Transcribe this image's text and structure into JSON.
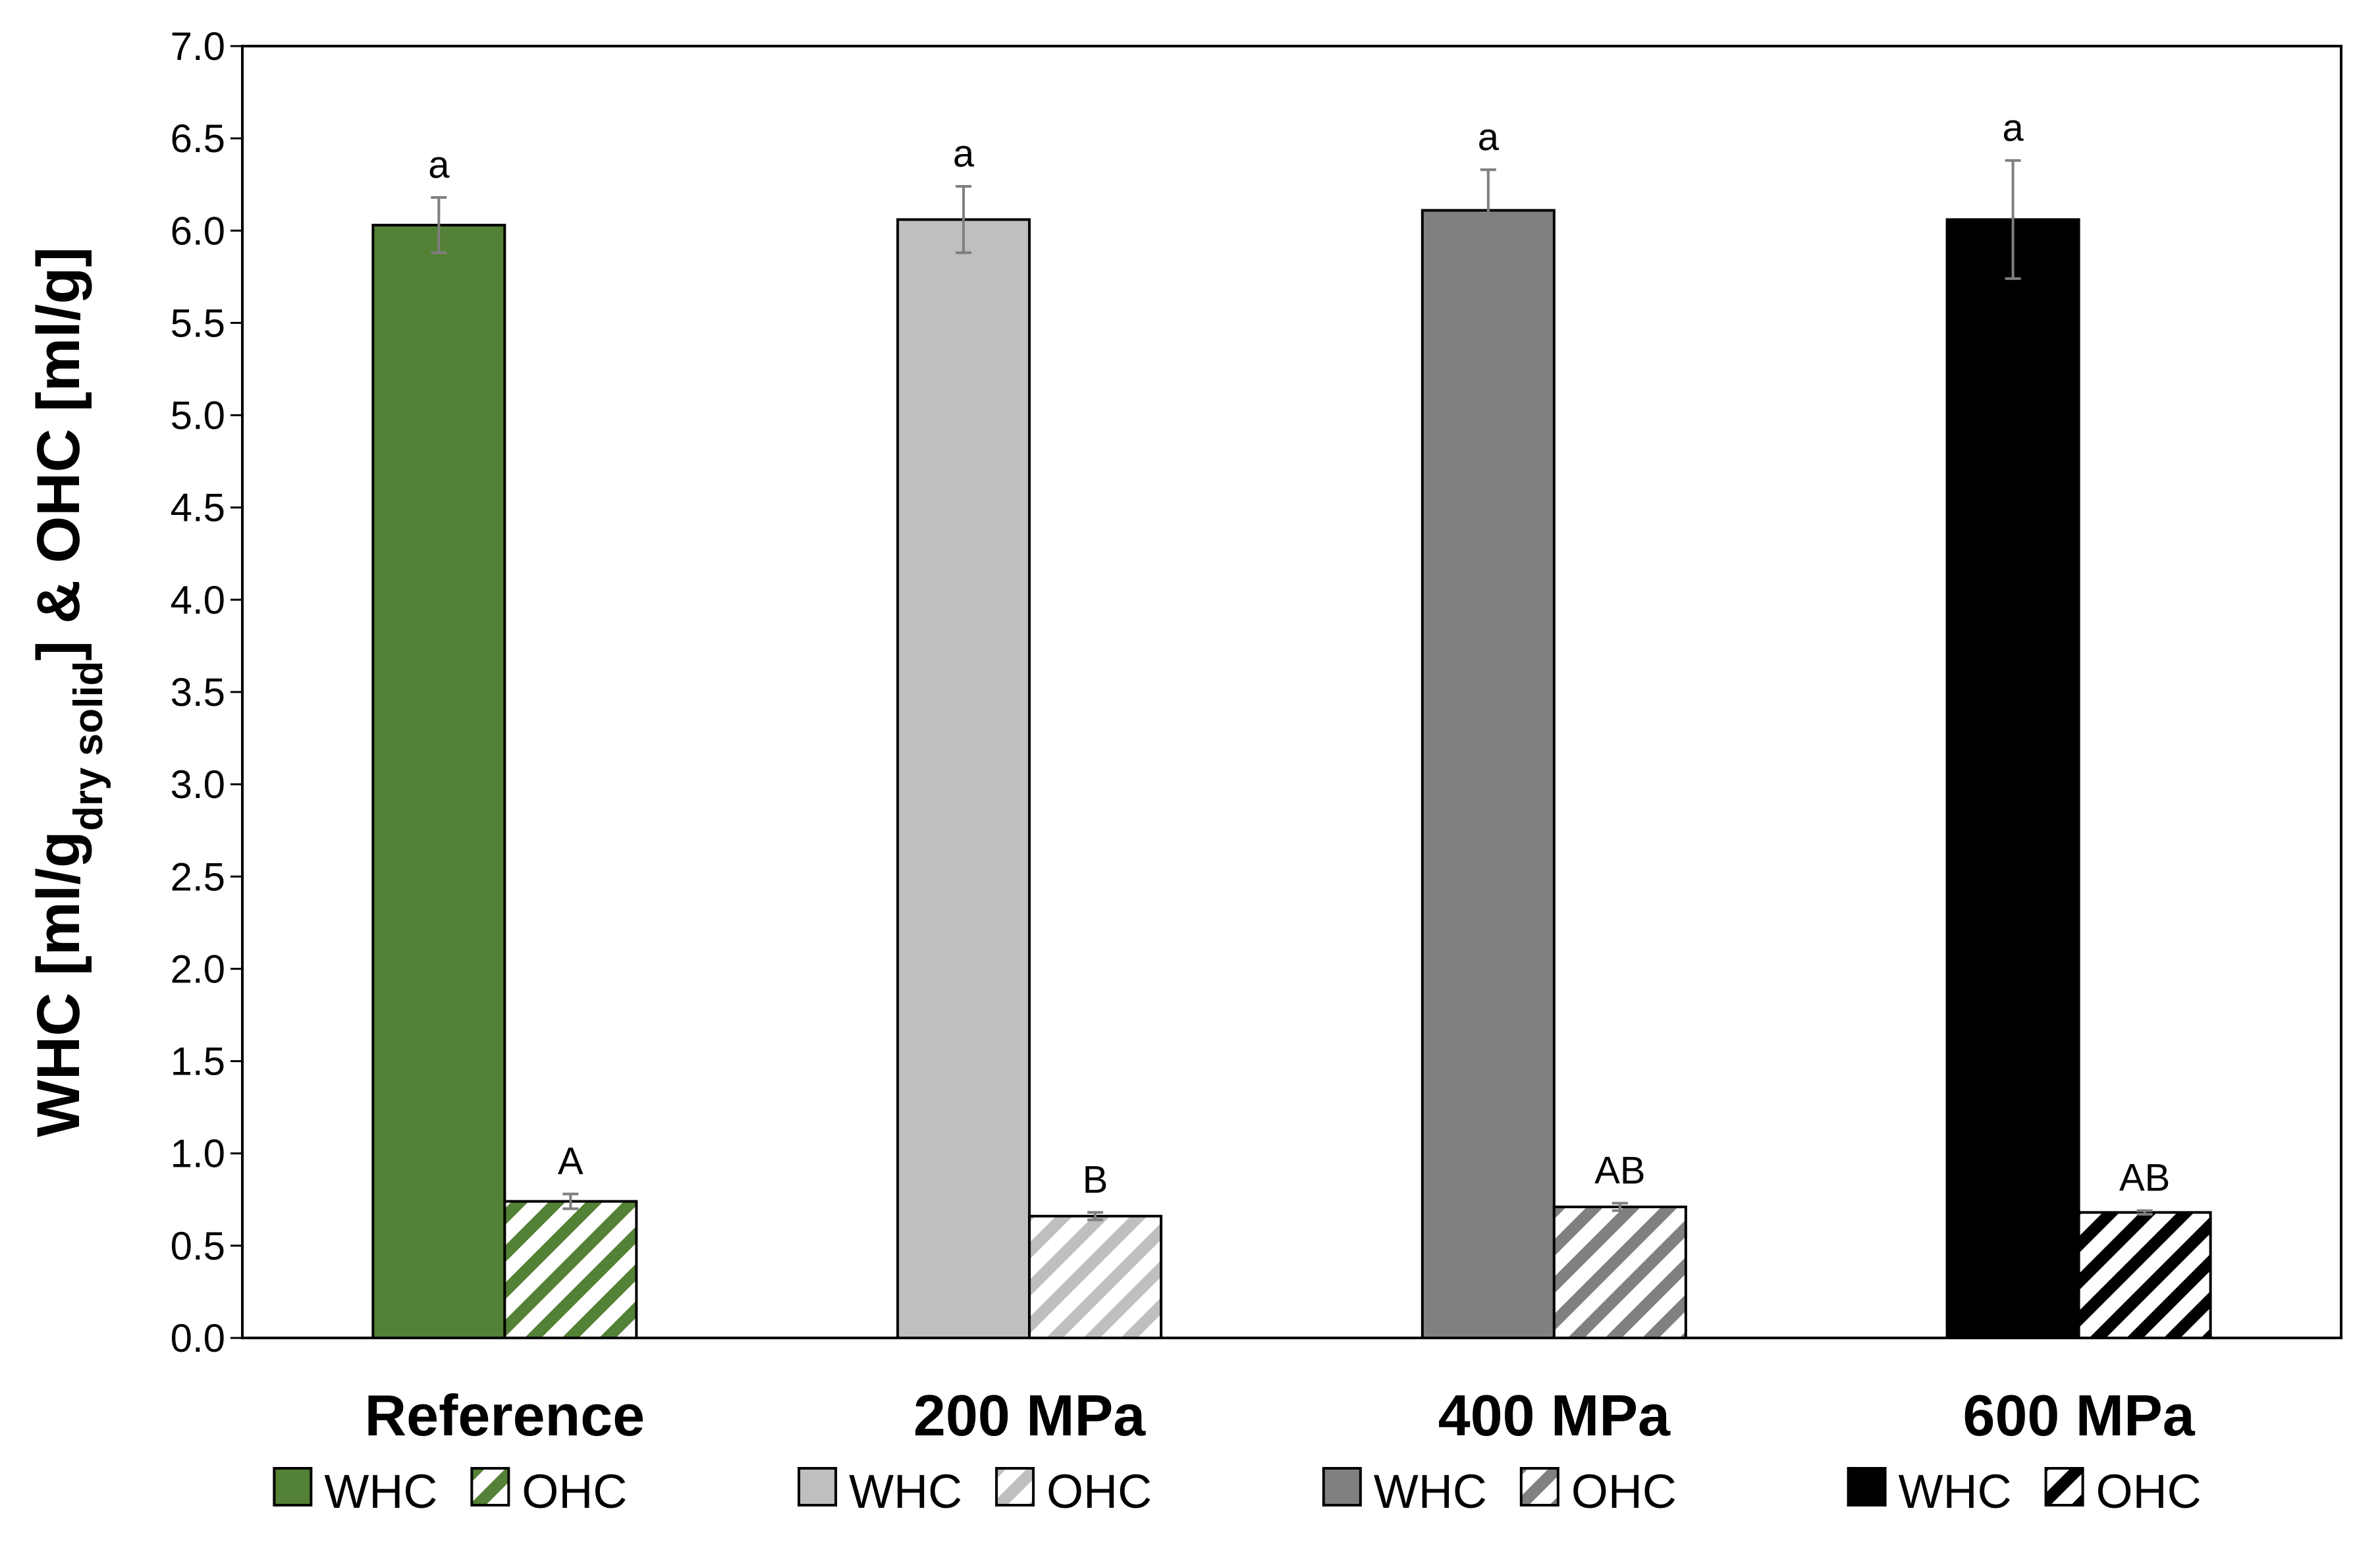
{
  "chart_data": {
    "type": "bar",
    "title": "",
    "xlabel": "",
    "ylabel": {
      "main": "WHC [ml/g",
      "subscript": "dry solid",
      "rest": "] & OHC [ml/g]"
    },
    "ylim": [
      0,
      7
    ],
    "yticks": [
      "0.0",
      "0.5",
      "1.0",
      "1.5",
      "2.0",
      "2.5",
      "3.0",
      "3.5",
      "4.0",
      "4.5",
      "5.0",
      "5.5",
      "6.0",
      "6.5",
      "7.0"
    ],
    "ytick_values": [
      0,
      0.5,
      1.0,
      1.5,
      2.0,
      2.5,
      3.0,
      3.5,
      4.0,
      4.5,
      5.0,
      5.5,
      6.0,
      6.5,
      7.0
    ],
    "grid": false,
    "legend_position": "bottom",
    "categories": [
      "Reference",
      "200 MPa",
      "400 MPa",
      "600 MPa"
    ],
    "colors": [
      "#538135",
      "#bfbfbf",
      "#808080",
      "#000000"
    ],
    "series": [
      {
        "name": "WHC",
        "pattern": "solid",
        "values": [
          6.03,
          6.06,
          6.11,
          6.06
        ],
        "errors": [
          0.15,
          0.18,
          0.22,
          0.32
        ],
        "significance": [
          "a",
          "a",
          "a",
          "a"
        ]
      },
      {
        "name": "OHC",
        "pattern": "diagonal-stripes",
        "values": [
          0.74,
          0.66,
          0.71,
          0.68
        ],
        "errors": [
          0.04,
          0.02,
          0.02,
          0.01
        ],
        "significance": [
          "A",
          "B",
          "AB",
          "AB"
        ]
      }
    ],
    "legend": [
      {
        "label": "WHC",
        "series": 0,
        "group": 0
      },
      {
        "label": "OHC",
        "series": 1,
        "group": 0
      },
      {
        "label": "WHC",
        "series": 0,
        "group": 1
      },
      {
        "label": "OHC",
        "series": 1,
        "group": 1
      },
      {
        "label": "WHC",
        "series": 0,
        "group": 2
      },
      {
        "label": "OHC",
        "series": 1,
        "group": 2
      },
      {
        "label": "WHC",
        "series": 0,
        "group": 3
      },
      {
        "label": "OHC",
        "series": 1,
        "group": 3
      }
    ]
  }
}
